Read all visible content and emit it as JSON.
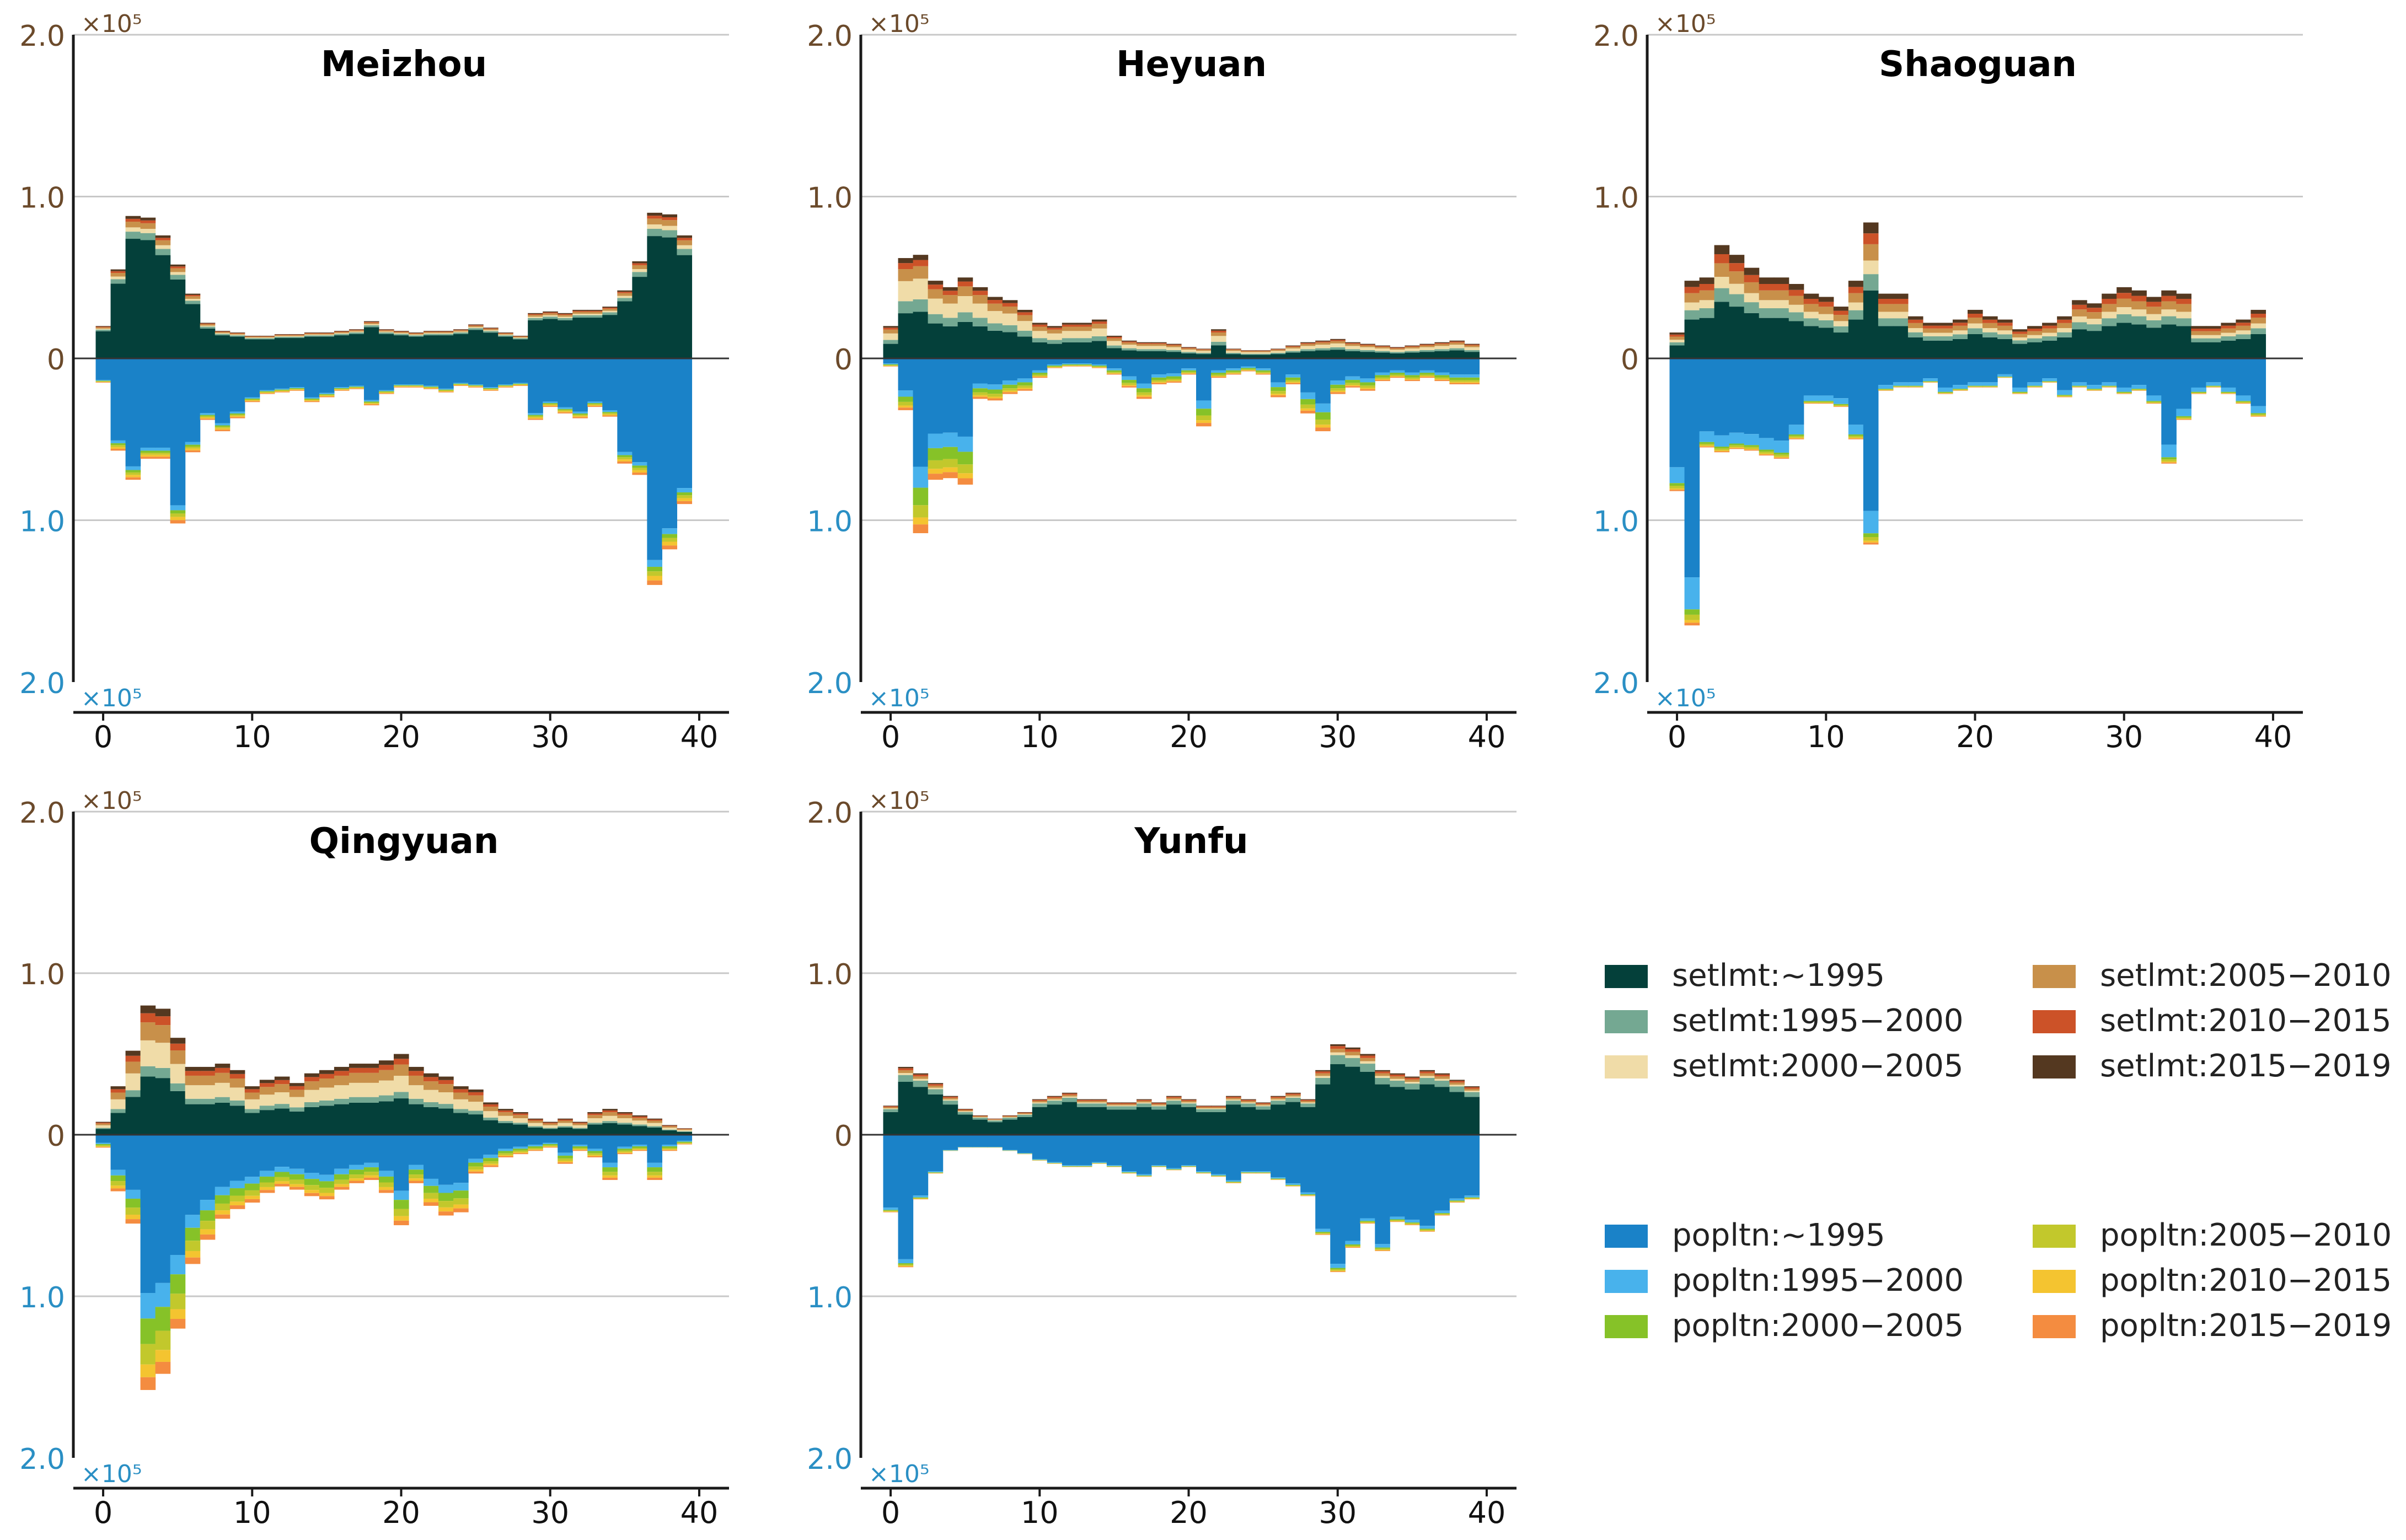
{
  "colors": {
    "axis": "#1a1a1a",
    "grid": "#c8c8c8",
    "upper_tick": "#6b4a2b",
    "lower_tick": "#2a8fc4",
    "setlmt": [
      "#04403a",
      "#74a892",
      "#f0dca8",
      "#c8904a",
      "#cc5228",
      "#543820"
    ],
    "popltn": [
      "#1a82c8",
      "#48b2ec",
      "#86c228",
      "#c2c82c",
      "#f4c430",
      "#f48c40"
    ]
  },
  "legend": {
    "setlmt": [
      "setlmt:~1995",
      "setlmt:1995−2000",
      "setlmt:2000−2005",
      "setlmt:2005−2010",
      "setlmt:2010−2015",
      "setlmt:2015−2019"
    ],
    "popltn": [
      "popltn:~1995",
      "popltn:1995−2000",
      "popltn:2000−2005",
      "popltn:2005−2010",
      "popltn:2010−2015",
      "popltn:2015−2019"
    ]
  },
  "chart_data": [
    {
      "type": "bar",
      "title": "Meizhou",
      "x_ticks": [
        "0",
        "10",
        "20",
        "30",
        "40"
      ],
      "y_ticks_upper": [
        "2.0",
        "1.0",
        "0"
      ],
      "y_ticks_lower": [
        "1.0",
        "2.0"
      ],
      "scale_label_upper": "×10⁵",
      "scale_label_lower": "×10⁵",
      "xlim": [
        -2,
        42
      ],
      "ylim_upper": [
        0,
        2.0
      ],
      "ylim_lower": [
        0,
        2.0
      ],
      "x": [
        0,
        1,
        2,
        3,
        4,
        5,
        6,
        7,
        8,
        9,
        10,
        11,
        12,
        13,
        14,
        15,
        16,
        17,
        18,
        19,
        20,
        21,
        22,
        23,
        24,
        25,
        26,
        27,
        28,
        29,
        30,
        31,
        32,
        33,
        34,
        35,
        36,
        37,
        38,
        39
      ],
      "setlmt_totals": [
        0.2,
        0.55,
        0.88,
        0.87,
        0.76,
        0.58,
        0.4,
        0.22,
        0.17,
        0.16,
        0.14,
        0.14,
        0.15,
        0.15,
        0.16,
        0.16,
        0.17,
        0.18,
        0.23,
        0.18,
        0.17,
        0.16,
        0.17,
        0.17,
        0.18,
        0.21,
        0.19,
        0.16,
        0.14,
        0.28,
        0.29,
        0.28,
        0.3,
        0.3,
        0.32,
        0.42,
        0.6,
        0.9,
        0.89,
        0.76
      ],
      "popltn_totals": [
        0.15,
        0.57,
        0.75,
        0.62,
        0.62,
        1.02,
        0.58,
        0.38,
        0.45,
        0.37,
        0.27,
        0.22,
        0.21,
        0.2,
        0.27,
        0.24,
        0.2,
        0.19,
        0.29,
        0.22,
        0.18,
        0.18,
        0.19,
        0.21,
        0.17,
        0.18,
        0.2,
        0.18,
        0.17,
        0.38,
        0.3,
        0.34,
        0.37,
        0.3,
        0.36,
        0.65,
        0.72,
        1.4,
        1.18,
        0.9
      ],
      "setlmt_shares": [
        0.84,
        0.05,
        0.03,
        0.04,
        0.02,
        0.02
      ],
      "popltn_shares": [
        0.89,
        0.03,
        0.02,
        0.02,
        0.02,
        0.02
      ]
    },
    {
      "type": "bar",
      "title": "Heyuan",
      "x_ticks": [
        "0",
        "10",
        "20",
        "30",
        "40"
      ],
      "y_ticks_upper": [
        "2.0",
        "1.0",
        "0"
      ],
      "y_ticks_lower": [
        "1.0",
        "2.0"
      ],
      "scale_label_upper": "×10⁵",
      "scale_label_lower": "×10⁵",
      "xlim": [
        -2,
        42
      ],
      "ylim_upper": [
        0,
        2.0
      ],
      "ylim_lower": [
        0,
        2.0
      ],
      "x": [
        0,
        1,
        2,
        3,
        4,
        5,
        6,
        7,
        8,
        9,
        10,
        11,
        12,
        13,
        14,
        15,
        16,
        17,
        18,
        19,
        20,
        21,
        22,
        23,
        24,
        25,
        26,
        27,
        28,
        29,
        30,
        31,
        32,
        33,
        34,
        35,
        36,
        37,
        38,
        39
      ],
      "setlmt_totals": [
        0.2,
        0.62,
        0.64,
        0.48,
        0.44,
        0.5,
        0.44,
        0.38,
        0.36,
        0.3,
        0.22,
        0.2,
        0.22,
        0.22,
        0.24,
        0.14,
        0.11,
        0.1,
        0.1,
        0.09,
        0.07,
        0.06,
        0.18,
        0.06,
        0.05,
        0.05,
        0.06,
        0.08,
        0.1,
        0.11,
        0.12,
        0.1,
        0.09,
        0.08,
        0.07,
        0.08,
        0.09,
        0.1,
        0.11,
        0.09
      ],
      "popltn_totals": [
        0.05,
        0.32,
        1.08,
        0.75,
        0.74,
        0.78,
        0.25,
        0.26,
        0.22,
        0.2,
        0.12,
        0.06,
        0.05,
        0.05,
        0.06,
        0.1,
        0.18,
        0.25,
        0.16,
        0.15,
        0.1,
        0.42,
        0.12,
        0.1,
        0.08,
        0.1,
        0.24,
        0.16,
        0.34,
        0.45,
        0.22,
        0.18,
        0.2,
        0.14,
        0.12,
        0.14,
        0.12,
        0.14,
        0.16,
        0.16
      ],
      "setlmt_shares": [
        0.45,
        0.12,
        0.2,
        0.12,
        0.06,
        0.05
      ],
      "popltn_shares": [
        0.62,
        0.12,
        0.1,
        0.07,
        0.04,
        0.05
      ]
    },
    {
      "type": "bar",
      "title": "Shaoguan",
      "x_ticks": [
        "0",
        "10",
        "20",
        "30",
        "40"
      ],
      "y_ticks_upper": [
        "2.0",
        "1.0",
        "0"
      ],
      "y_ticks_lower": [
        "1.0",
        "2.0"
      ],
      "scale_label_upper": "×10⁵",
      "scale_label_lower": "×10⁵",
      "xlim": [
        -2,
        42
      ],
      "ylim_upper": [
        0,
        2.0
      ],
      "ylim_lower": [
        0,
        2.0
      ],
      "x": [
        0,
        1,
        2,
        3,
        4,
        5,
        6,
        7,
        8,
        9,
        10,
        11,
        12,
        13,
        14,
        15,
        16,
        17,
        18,
        19,
        20,
        21,
        22,
        23,
        24,
        25,
        26,
        27,
        28,
        29,
        30,
        31,
        32,
        33,
        34,
        35,
        36,
        37,
        38,
        39
      ],
      "setlmt_totals": [
        0.16,
        0.48,
        0.5,
        0.7,
        0.64,
        0.56,
        0.5,
        0.5,
        0.46,
        0.4,
        0.38,
        0.32,
        0.48,
        0.84,
        0.4,
        0.4,
        0.26,
        0.22,
        0.22,
        0.24,
        0.3,
        0.26,
        0.24,
        0.18,
        0.2,
        0.22,
        0.26,
        0.36,
        0.34,
        0.4,
        0.44,
        0.42,
        0.38,
        0.42,
        0.4,
        0.2,
        0.2,
        0.22,
        0.24,
        0.3
      ],
      "popltn_totals": [
        0.82,
        1.65,
        0.55,
        0.58,
        0.56,
        0.57,
        0.6,
        0.62,
        0.5,
        0.28,
        0.28,
        0.3,
        0.5,
        1.15,
        0.2,
        0.18,
        0.18,
        0.15,
        0.22,
        0.2,
        0.18,
        0.18,
        0.12,
        0.22,
        0.18,
        0.15,
        0.24,
        0.18,
        0.2,
        0.18,
        0.22,
        0.2,
        0.28,
        0.65,
        0.38,
        0.22,
        0.18,
        0.22,
        0.28,
        0.36
      ],
      "setlmt_shares": [
        0.5,
        0.12,
        0.1,
        0.12,
        0.08,
        0.08
      ],
      "popltn_shares": [
        0.82,
        0.12,
        0.02,
        0.02,
        0.01,
        0.01
      ]
    },
    {
      "type": "bar",
      "title": "Qingyuan",
      "x_ticks": [
        "0",
        "10",
        "20",
        "30",
        "40"
      ],
      "y_ticks_upper": [
        "2.0",
        "1.0",
        "0"
      ],
      "y_ticks_lower": [
        "1.0",
        "2.0"
      ],
      "scale_label_upper": "×10⁵",
      "scale_label_lower": "×10⁵",
      "xlim": [
        -2,
        42
      ],
      "ylim_upper": [
        0,
        2.0
      ],
      "ylim_lower": [
        0,
        2.0
      ],
      "x": [
        0,
        1,
        2,
        3,
        4,
        5,
        6,
        7,
        8,
        9,
        10,
        11,
        12,
        13,
        14,
        15,
        16,
        17,
        18,
        19,
        20,
        21,
        22,
        23,
        24,
        25,
        26,
        27,
        28,
        29,
        30,
        31,
        32,
        33,
        34,
        35,
        36,
        37,
        38,
        39
      ],
      "setlmt_totals": [
        0.08,
        0.3,
        0.52,
        0.8,
        0.78,
        0.6,
        0.42,
        0.42,
        0.44,
        0.4,
        0.3,
        0.34,
        0.36,
        0.32,
        0.38,
        0.4,
        0.42,
        0.44,
        0.44,
        0.46,
        0.5,
        0.42,
        0.38,
        0.36,
        0.3,
        0.28,
        0.2,
        0.16,
        0.14,
        0.1,
        0.08,
        0.1,
        0.08,
        0.14,
        0.16,
        0.14,
        0.12,
        0.1,
        0.06,
        0.04
      ],
      "popltn_totals": [
        0.08,
        0.35,
        0.55,
        1.58,
        1.48,
        1.2,
        0.8,
        0.65,
        0.52,
        0.46,
        0.42,
        0.36,
        0.32,
        0.34,
        0.38,
        0.4,
        0.34,
        0.3,
        0.28,
        0.36,
        0.56,
        0.3,
        0.44,
        0.5,
        0.48,
        0.24,
        0.2,
        0.14,
        0.12,
        0.1,
        0.08,
        0.18,
        0.1,
        0.14,
        0.28,
        0.12,
        0.1,
        0.28,
        0.1,
        0.06
      ],
      "setlmt_shares": [
        0.45,
        0.08,
        0.2,
        0.14,
        0.07,
        0.06
      ],
      "popltn_shares": [
        0.62,
        0.1,
        0.1,
        0.08,
        0.05,
        0.05
      ]
    },
    {
      "type": "bar",
      "title": "Yunfu",
      "x_ticks": [
        "0",
        "10",
        "20",
        "30",
        "40"
      ],
      "y_ticks_upper": [
        "2.0",
        "1.0",
        "0"
      ],
      "y_ticks_lower": [
        "1.0",
        "2.0"
      ],
      "scale_label_upper": "×10⁵",
      "scale_label_lower": "×10⁵",
      "xlim": [
        -2,
        42
      ],
      "ylim_upper": [
        0,
        2.0
      ],
      "ylim_lower": [
        0,
        2.0
      ],
      "x": [
        0,
        1,
        2,
        3,
        4,
        5,
        6,
        7,
        8,
        9,
        10,
        11,
        12,
        13,
        14,
        15,
        16,
        17,
        18,
        19,
        20,
        21,
        22,
        23,
        24,
        25,
        26,
        27,
        28,
        29,
        30,
        31,
        32,
        33,
        34,
        35,
        36,
        37,
        38,
        39
      ],
      "setlmt_totals": [
        0.18,
        0.42,
        0.38,
        0.32,
        0.24,
        0.16,
        0.12,
        0.1,
        0.12,
        0.14,
        0.22,
        0.24,
        0.26,
        0.22,
        0.22,
        0.2,
        0.2,
        0.22,
        0.2,
        0.24,
        0.22,
        0.18,
        0.18,
        0.24,
        0.22,
        0.2,
        0.24,
        0.26,
        0.22,
        0.4,
        0.56,
        0.54,
        0.5,
        0.4,
        0.38,
        0.36,
        0.4,
        0.38,
        0.34,
        0.3
      ],
      "popltn_totals": [
        0.48,
        0.82,
        0.4,
        0.24,
        0.1,
        0.08,
        0.08,
        0.08,
        0.1,
        0.12,
        0.16,
        0.18,
        0.2,
        0.2,
        0.18,
        0.2,
        0.24,
        0.26,
        0.2,
        0.22,
        0.2,
        0.24,
        0.26,
        0.3,
        0.24,
        0.24,
        0.28,
        0.32,
        0.38,
        0.62,
        0.85,
        0.7,
        0.55,
        0.72,
        0.54,
        0.56,
        0.6,
        0.5,
        0.42,
        0.4
      ],
      "setlmt_shares": [
        0.78,
        0.1,
        0.03,
        0.04,
        0.03,
        0.02
      ],
      "popltn_shares": [
        0.94,
        0.03,
        0.01,
        0.01,
        0.005,
        0.005
      ]
    }
  ]
}
